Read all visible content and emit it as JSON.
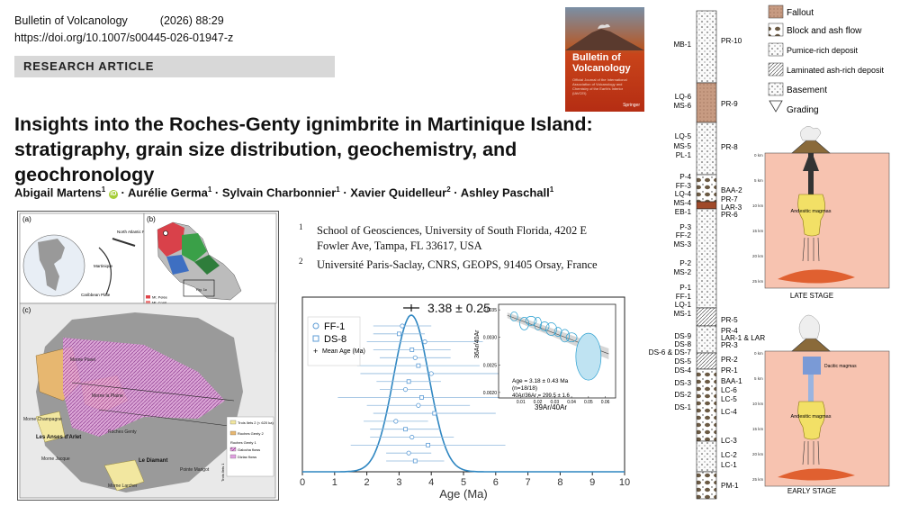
{
  "header": {
    "journal": "Bulletin of Volcanology",
    "year_vol": "(2026) 88:29",
    "doi": "https://doi.org/10.1007/s00445-026-01947-z",
    "article_type": "RESEARCH ARTICLE"
  },
  "cover": {
    "title_line1": "Bulletin of",
    "title_line2": "Volcanology",
    "subtitle": "Official Journal of the International Association of Volcanology and Chemistry of the Earth's Interior (IAVCEI)",
    "publisher": "Springer"
  },
  "title": {
    "line1": "Insights into the Roches-Genty ignimbrite in Martinique Island:",
    "line2": "stratigraphy, grain size distribution, geochemistry, and geochronology"
  },
  "authors": [
    {
      "name": "Abigail Martens",
      "sup": "1"
    },
    {
      "name": "Aurélie Germa",
      "sup": "1"
    },
    {
      "name": "Sylvain Charbonnier",
      "sup": "1"
    },
    {
      "name": "Xavier Quidelleur",
      "sup": "2"
    },
    {
      "name": "Ashley Paschall",
      "sup": "1"
    }
  ],
  "affiliations": [
    {
      "num": "1",
      "text": "School of Geosciences, University of South Florida, 4202 E Fowler Ave, Tampa, FL 33617, USA"
    },
    {
      "num": "2",
      "text": "Université Paris-Saclay, CNRS, GEOPS, 91405 Orsay, France"
    }
  ],
  "map_figure": {
    "panel_a": "(a)",
    "panel_b": "(b)",
    "panel_c": "(c)",
    "inset_labels": [
      "North Atlantic Plate",
      "Caribbean Plate",
      "Martinique"
    ],
    "legend_b": [
      {
        "label": "Mt. Pelée",
        "color": "#e0454a"
      },
      {
        "label": "Mt. Conil",
        "color": "#f08080"
      },
      {
        "label": "Trois Ilets 2",
        "color": "#f3c6c6"
      },
      {
        "label": "Trois Ilets 1",
        "color": "#c98a8a"
      },
      {
        "label": "Pitons du Carbet 2",
        "color": "#4aa35a"
      },
      {
        "label": "Pitons du Carbet 1",
        "color": "#2e7d3b"
      },
      {
        "label": "Morne Jacob 2",
        "color": "#3e6fc2"
      },
      {
        "label": "Morne Jacob 1",
        "color": "#6a8fd6"
      },
      {
        "label": "Miocene arc",
        "color": "#a0a0a0"
      },
      {
        "label": "Oligocene-Miocene arc",
        "color": "#606060"
      }
    ],
    "legend_c": [
      {
        "label": "Trois Ilets 2 (< 620 ka)",
        "color": "#f2e7a0"
      },
      {
        "label": "Roches Genty 2",
        "color": "#e7b770"
      },
      {
        "label": "Roches Genty 1",
        "color": "#ffffff"
      },
      {
        "label": "Galocha flows",
        "color": "#c880c8"
      },
      {
        "label": "Diziac flows",
        "color": "#e0a0e0"
      }
    ],
    "place_labels": [
      "Morne Pavel",
      "Morne la Plaine",
      "Morne Champagne",
      "Les Anses d'Arlet",
      "Morne Jacque",
      "Roches Genty",
      "Le Diamant",
      "Pointe Marigot",
      "Morne Larcher",
      "Fig. 1c"
    ],
    "side_label": "Trois Ilets 1"
  },
  "chart_data": {
    "type": "scatter",
    "title": "3.38 ± 0.25",
    "xlabel": "Age (Ma)",
    "ylabel": "",
    "xlim": [
      0,
      10
    ],
    "xticks": [
      0,
      1,
      2,
      3,
      4,
      5,
      6,
      7,
      8,
      9,
      10
    ],
    "legend": [
      {
        "name": "FF-1",
        "marker": "circle"
      },
      {
        "name": "DS-8",
        "marker": "square"
      },
      {
        "name": "Mean Age (Ma)",
        "marker": "plus"
      }
    ],
    "mean_age": 3.38,
    "mean_err": 0.25,
    "series": [
      {
        "name": "FF-1",
        "x": [
          3.1,
          3.8,
          3.5,
          4.0,
          3.2,
          3.6,
          2.9,
          3.4,
          3.3
        ],
        "xerr": [
          0.9,
          1.8,
          1.1,
          2.2,
          0.8,
          1.6,
          1.0,
          1.3,
          0.7
        ]
      },
      {
        "name": "DS-8",
        "x": [
          3.0,
          3.4,
          3.6,
          3.3,
          3.7,
          4.1,
          3.2,
          3.9,
          3.5
        ],
        "xerr": [
          0.8,
          1.2,
          1.9,
          1.0,
          2.6,
          1.9,
          1.1,
          2.4,
          0.9
        ]
      }
    ],
    "density": {
      "mean": 3.38,
      "sd": 0.55
    },
    "inset": {
      "xlabel": "39Ar/40Ar",
      "ylabel": "36Ar/40Ar",
      "xticks": [
        "0.01",
        "0.02",
        "0.03",
        "0.04",
        "0.05",
        "0.06"
      ],
      "yticks": [
        "0.0035",
        "0.0030",
        "0.0025",
        "0.0020"
      ],
      "age_text": "Age = 3.18 ± 0.43 Ma",
      "n_text": "(n=18/18)",
      "ratio_text": "40Ar/36Ar = 299.5 ± 1.6",
      "points": [
        [
          0.006,
          0.00338
        ],
        [
          0.012,
          0.00325
        ],
        [
          0.016,
          0.0033
        ],
        [
          0.02,
          0.00325
        ],
        [
          0.024,
          0.0032
        ],
        [
          0.028,
          0.00315
        ],
        [
          0.032,
          0.0031
        ],
        [
          0.036,
          0.00303
        ],
        [
          0.04,
          0.003
        ],
        [
          0.05,
          0.00265
        ]
      ]
    }
  },
  "strat_column": {
    "left_labels": [
      "MB-1",
      "LQ-6",
      "MS-6",
      "LQ-5",
      "MS-5",
      "PL-1",
      "P-4",
      "FF-3",
      "LQ-4",
      "MS-4",
      "EB-1",
      "P-3",
      "FF-2",
      "MS-3",
      "P-2",
      "MS-2",
      "P-1",
      "FF-1",
      "LQ-1",
      "MS-1",
      "DS-9",
      "DS-8",
      "DS-6 & DS-7",
      "DS-5",
      "DS-4",
      "DS-3",
      "DS-2",
      "DS-1"
    ],
    "right_labels": [
      "PR-10",
      "PR-9",
      "PR-8",
      "BAA-2",
      "PR-7",
      "LAR-3",
      "PR-6",
      "PR-5",
      "PR-4",
      "LAR-1 & LAR-2",
      "PR-3",
      "PR-2",
      "PR-1",
      "BAA-1",
      "LC-6",
      "LC-5",
      "LC-4",
      "LC-3",
      "LC-2",
      "LC-1",
      "PM-1"
    ],
    "legend": [
      "Fallout",
      "Block and ash flow",
      "Pumice-rich deposit",
      "Laminated ash-rich deposit",
      "Basement",
      "Grading"
    ]
  },
  "model_diagram": {
    "late_stage": "LATE STAGE",
    "early_stage": "EARLY STAGE",
    "late_magma": "Andesitic magmas",
    "early_magma_upper": "Dacitic magmas",
    "early_magma_lower": "Andesitic magmas",
    "depth_ticks": [
      "0 km",
      "5 km",
      "10 km",
      "15 km",
      "20 km",
      "25 km"
    ]
  }
}
